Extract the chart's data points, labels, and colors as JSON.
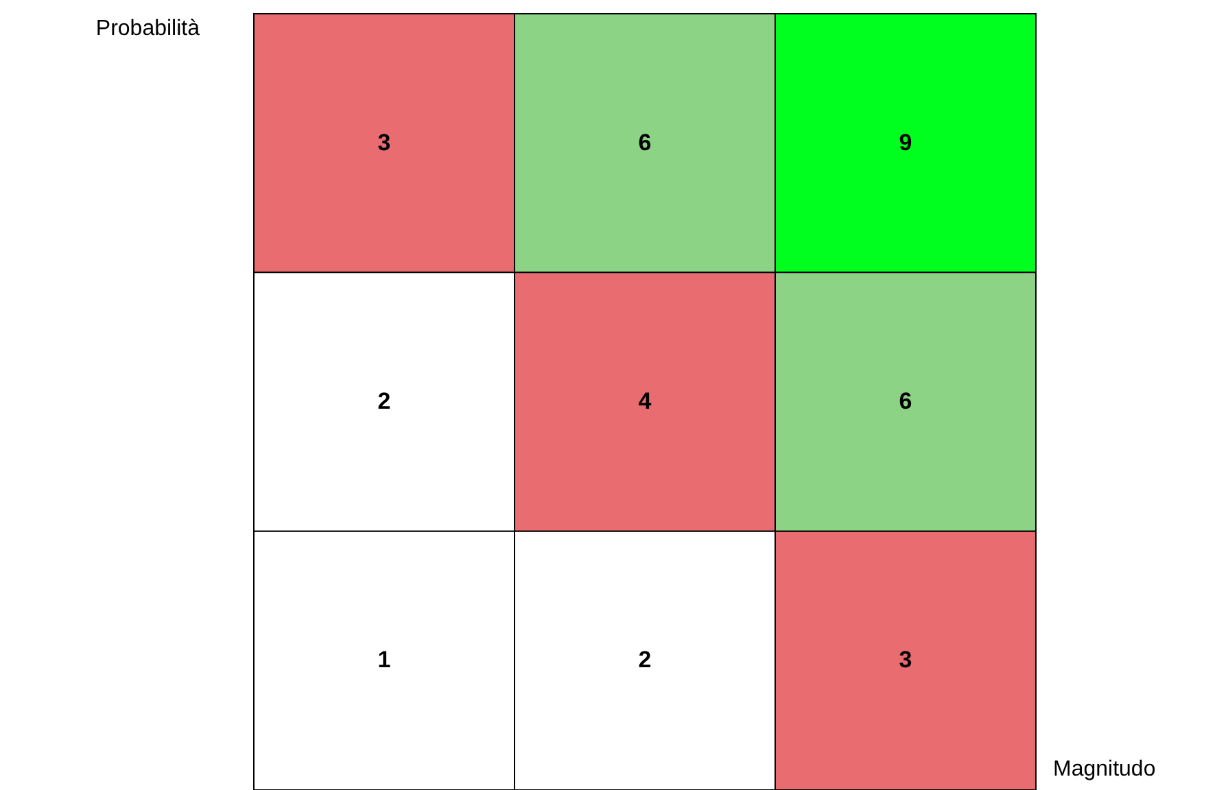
{
  "chart_data": {
    "type": "heatmap",
    "xlabel": "Magnitudo",
    "ylabel": "Probabilità",
    "categories": [
      null,
      null,
      null
    ],
    "y_categories": [
      null,
      null,
      null
    ],
    "cells": [
      [
        3,
        6,
        9
      ],
      [
        2,
        4,
        6
      ],
      [
        1,
        2,
        3
      ]
    ],
    "colors": [
      [
        "#e86c70",
        "#8dd386",
        "#00ff1f"
      ],
      [
        "#ffffff",
        "#e86c70",
        "#8dd386"
      ],
      [
        "#ffffff",
        "#ffffff",
        "#e86c70"
      ]
    ],
    "data_labels": true
  }
}
